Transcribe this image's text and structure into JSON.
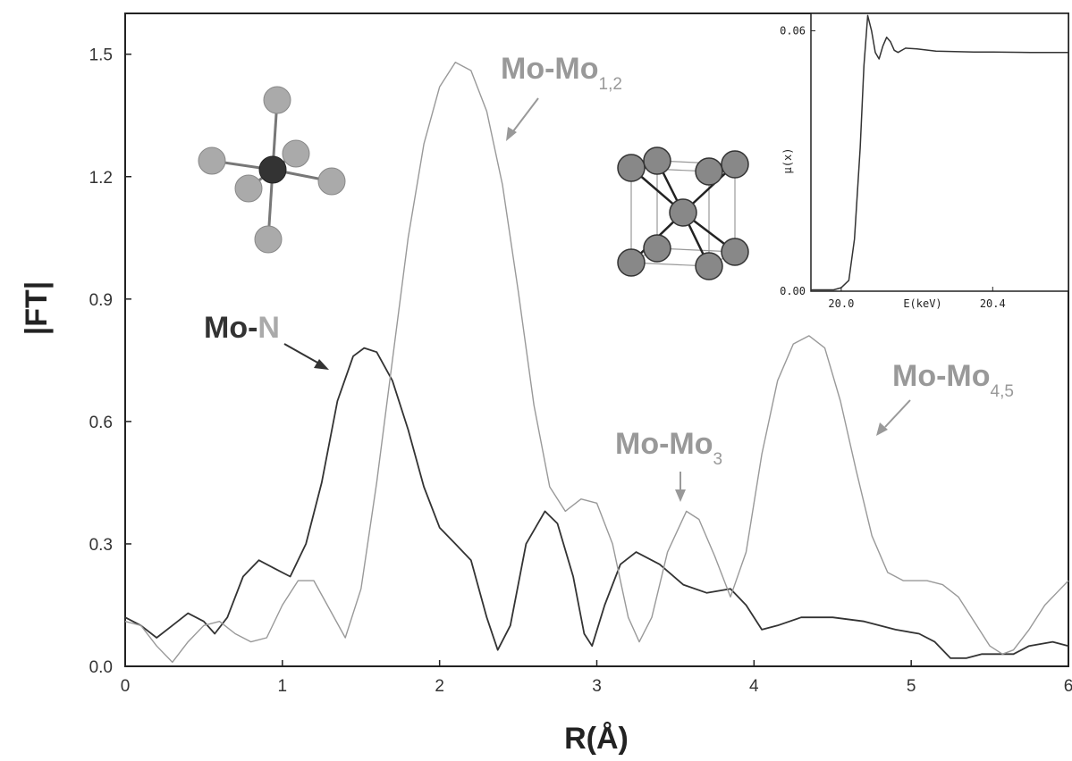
{
  "chart_data": [
    {
      "type": "line",
      "xlabel": "R(Å)",
      "ylabel": "|FT|",
      "xlim": [
        0,
        6
      ],
      "ylim": [
        0,
        1.6
      ],
      "xticks": [
        0,
        1,
        2,
        3,
        4,
        5,
        6
      ],
      "yticks": [
        "0.0",
        "0.3",
        "0.6",
        "0.9",
        "1.2",
        "1.5"
      ],
      "grid": false,
      "series": [
        {
          "color": "#333333",
          "points": [
            [
              0,
              0.12
            ],
            [
              0.1,
              0.1
            ],
            [
              0.2,
              0.07
            ],
            [
              0.3,
              0.1
            ],
            [
              0.4,
              0.13
            ],
            [
              0.5,
              0.11
            ],
            [
              0.57,
              0.08
            ],
            [
              0.65,
              0.12
            ],
            [
              0.75,
              0.22
            ],
            [
              0.85,
              0.26
            ],
            [
              0.95,
              0.24
            ],
            [
              1.05,
              0.22
            ],
            [
              1.15,
              0.3
            ],
            [
              1.25,
              0.45
            ],
            [
              1.35,
              0.65
            ],
            [
              1.45,
              0.76
            ],
            [
              1.52,
              0.78
            ],
            [
              1.6,
              0.77
            ],
            [
              1.7,
              0.7
            ],
            [
              1.8,
              0.58
            ],
            [
              1.9,
              0.44
            ],
            [
              2.0,
              0.34
            ],
            [
              2.1,
              0.3
            ],
            [
              2.2,
              0.26
            ],
            [
              2.3,
              0.12
            ],
            [
              2.37,
              0.04
            ],
            [
              2.45,
              0.1
            ],
            [
              2.55,
              0.3
            ],
            [
              2.67,
              0.38
            ],
            [
              2.75,
              0.35
            ],
            [
              2.85,
              0.22
            ],
            [
              2.92,
              0.08
            ],
            [
              2.97,
              0.05
            ],
            [
              3.05,
              0.15
            ],
            [
              3.15,
              0.25
            ],
            [
              3.25,
              0.28
            ],
            [
              3.4,
              0.25
            ],
            [
              3.55,
              0.2
            ],
            [
              3.7,
              0.18
            ],
            [
              3.85,
              0.19
            ],
            [
              3.95,
              0.15
            ],
            [
              4.05,
              0.09
            ],
            [
              4.15,
              0.1
            ],
            [
              4.3,
              0.12
            ],
            [
              4.5,
              0.12
            ],
            [
              4.7,
              0.11
            ],
            [
              4.9,
              0.09
            ],
            [
              5.05,
              0.08
            ],
            [
              5.15,
              0.06
            ],
            [
              5.25,
              0.02
            ],
            [
              5.35,
              0.02
            ],
            [
              5.45,
              0.03
            ],
            [
              5.55,
              0.03
            ],
            [
              5.65,
              0.03
            ],
            [
              5.75,
              0.05
            ],
            [
              5.9,
              0.06
            ],
            [
              6.0,
              0.05
            ]
          ]
        },
        {
          "color": "#999999",
          "points": [
            [
              0,
              0.11
            ],
            [
              0.1,
              0.1
            ],
            [
              0.2,
              0.05
            ],
            [
              0.3,
              0.01
            ],
            [
              0.4,
              0.06
            ],
            [
              0.5,
              0.1
            ],
            [
              0.6,
              0.11
            ],
            [
              0.7,
              0.08
            ],
            [
              0.8,
              0.06
            ],
            [
              0.9,
              0.07
            ],
            [
              1.0,
              0.15
            ],
            [
              1.1,
              0.21
            ],
            [
              1.2,
              0.21
            ],
            [
              1.3,
              0.14
            ],
            [
              1.4,
              0.07
            ],
            [
              1.5,
              0.19
            ],
            [
              1.6,
              0.45
            ],
            [
              1.7,
              0.75
            ],
            [
              1.8,
              1.05
            ],
            [
              1.9,
              1.28
            ],
            [
              2.0,
              1.42
            ],
            [
              2.1,
              1.48
            ],
            [
              2.2,
              1.46
            ],
            [
              2.3,
              1.36
            ],
            [
              2.4,
              1.18
            ],
            [
              2.5,
              0.92
            ],
            [
              2.6,
              0.64
            ],
            [
              2.7,
              0.44
            ],
            [
              2.8,
              0.38
            ],
            [
              2.9,
              0.41
            ],
            [
              3.0,
              0.4
            ],
            [
              3.1,
              0.3
            ],
            [
              3.2,
              0.12
            ],
            [
              3.27,
              0.06
            ],
            [
              3.35,
              0.12
            ],
            [
              3.45,
              0.28
            ],
            [
              3.57,
              0.38
            ],
            [
              3.65,
              0.36
            ],
            [
              3.75,
              0.27
            ],
            [
              3.85,
              0.17
            ],
            [
              3.95,
              0.28
            ],
            [
              4.05,
              0.52
            ],
            [
              4.15,
              0.7
            ],
            [
              4.25,
              0.79
            ],
            [
              4.35,
              0.81
            ],
            [
              4.45,
              0.78
            ],
            [
              4.55,
              0.65
            ],
            [
              4.65,
              0.48
            ],
            [
              4.75,
              0.32
            ],
            [
              4.85,
              0.23
            ],
            [
              4.95,
              0.21
            ],
            [
              5.1,
              0.21
            ],
            [
              5.2,
              0.2
            ],
            [
              5.3,
              0.17
            ],
            [
              5.4,
              0.11
            ],
            [
              5.5,
              0.05
            ],
            [
              5.58,
              0.03
            ],
            [
              5.65,
              0.04
            ],
            [
              5.75,
              0.09
            ],
            [
              5.85,
              0.15
            ],
            [
              5.95,
              0.19
            ],
            [
              6.0,
              0.21
            ]
          ]
        }
      ],
      "annotations": [
        {
          "label": "Mo-",
          "label2": "N",
          "sub": "",
          "color": "#333333",
          "color2": "#aaaaaa"
        },
        {
          "label": "Mo-Mo",
          "sub": "1,2",
          "color": "#999999"
        },
        {
          "label": "Mo-Mo",
          "sub": "3",
          "color": "#999999"
        },
        {
          "label": "Mo-Mo",
          "sub": "4,5",
          "color": "#999999"
        }
      ]
    },
    {
      "type": "line",
      "xlabel": "E(keV)",
      "ylabel": "μ(x)",
      "xlim": [
        19.92,
        20.6
      ],
      "ylim": [
        0,
        0.064
      ],
      "xticks": [
        "20.0",
        "20.4"
      ],
      "yticks": [
        "0.00",
        "0.06"
      ],
      "series": [
        {
          "color": "#333333",
          "points": [
            [
              19.92,
              0.0003
            ],
            [
              19.98,
              0.0003
            ],
            [
              20.0,
              0.0008
            ],
            [
              20.02,
              0.0025
            ],
            [
              20.035,
              0.012
            ],
            [
              20.05,
              0.033
            ],
            [
              20.06,
              0.052
            ],
            [
              20.07,
              0.0635
            ],
            [
              20.08,
              0.06
            ],
            [
              20.09,
              0.055
            ],
            [
              20.1,
              0.0535
            ],
            [
              20.11,
              0.0565
            ],
            [
              20.12,
              0.0585
            ],
            [
              20.13,
              0.0575
            ],
            [
              20.14,
              0.0555
            ],
            [
              20.15,
              0.055
            ],
            [
              20.17,
              0.056
            ],
            [
              20.2,
              0.0558
            ],
            [
              20.25,
              0.0553
            ],
            [
              20.3,
              0.0552
            ],
            [
              20.35,
              0.0551
            ],
            [
              20.4,
              0.0551
            ],
            [
              20.5,
              0.055
            ],
            [
              20.6,
              0.055
            ]
          ]
        }
      ]
    }
  ]
}
